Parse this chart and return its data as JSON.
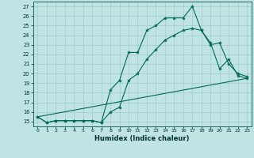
{
  "xlabel": "Humidex (Indice chaleur)",
  "background_color": "#c0e4e4",
  "grid_color": "#a0cccc",
  "line_color": "#006858",
  "xlim": [
    -0.5,
    23.5
  ],
  "ylim": [
    14.5,
    27.5
  ],
  "xticks": [
    0,
    1,
    2,
    3,
    4,
    5,
    6,
    7,
    8,
    9,
    10,
    11,
    12,
    13,
    14,
    15,
    16,
    17,
    18,
    19,
    20,
    21,
    22,
    23
  ],
  "yticks": [
    15,
    16,
    17,
    18,
    19,
    20,
    21,
    22,
    23,
    24,
    25,
    26,
    27
  ],
  "line1_x": [
    0,
    1,
    2,
    3,
    4,
    5,
    6,
    7,
    8,
    9,
    10,
    11,
    12,
    13,
    14,
    15,
    16,
    17,
    18,
    19,
    20,
    21,
    22,
    23
  ],
  "line1_y": [
    15.5,
    14.9,
    15.1,
    15.1,
    15.1,
    15.1,
    15.1,
    14.9,
    18.3,
    19.3,
    22.2,
    22.2,
    24.5,
    25.0,
    25.8,
    25.8,
    25.8,
    27.0,
    24.5,
    23.2,
    20.5,
    21.5,
    19.8,
    19.5
  ],
  "line2_x": [
    0,
    1,
    2,
    3,
    4,
    5,
    6,
    7,
    8,
    9,
    10,
    11,
    12,
    13,
    14,
    15,
    16,
    17,
    18,
    19,
    20,
    21,
    22,
    23
  ],
  "line2_y": [
    15.5,
    14.9,
    15.1,
    15.1,
    15.1,
    15.1,
    15.1,
    14.9,
    16.0,
    16.5,
    19.3,
    20.0,
    21.5,
    22.5,
    23.5,
    24.0,
    24.5,
    24.7,
    24.5,
    23.0,
    23.2,
    21.0,
    20.0,
    19.7
  ],
  "line3_x": [
    0,
    23
  ],
  "line3_y": [
    15.5,
    19.5
  ]
}
